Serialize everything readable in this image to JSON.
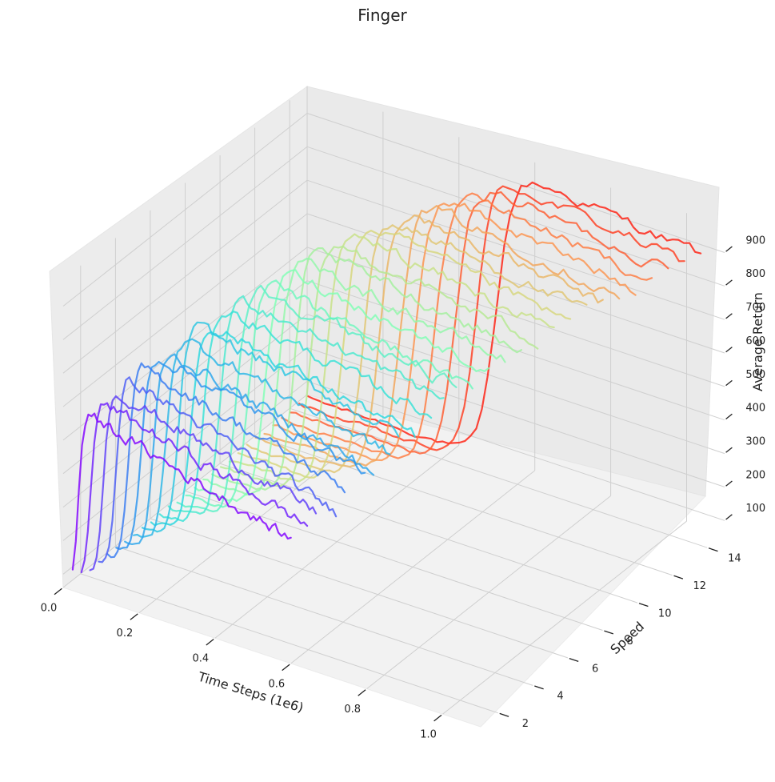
{
  "chart_data": {
    "type": "line",
    "projection": "3d",
    "title": "Finger",
    "xlabel": "Time Steps (1e6)",
    "ylabel": "Speed",
    "zlabel": "Average Return",
    "xlim": [
      0.0,
      1.1
    ],
    "ylim": [
      1.0,
      15.0
    ],
    "zlim": [
      60,
      980
    ],
    "x_ticks": [
      "0.0",
      "0.2",
      "0.4",
      "0.6",
      "0.8",
      "1.0"
    ],
    "y_ticks": [
      "2",
      "4",
      "6",
      "8",
      "10",
      "12",
      "14"
    ],
    "z_ticks": [
      "100",
      "200",
      "300",
      "400",
      "500",
      "600",
      "700",
      "800",
      "900"
    ],
    "grid": true,
    "colormap": "rainbow",
    "color_stops": [
      "#8000ff",
      "#2a8ef0",
      "#2adddd",
      "#80ffb4",
      "#d4dd80",
      "#ff8e4a",
      "#ff0000"
    ],
    "series_by_speed": [
      {
        "speed": 1.0,
        "x_end": 0.6,
        "x_rise": 0.04,
        "rise_width": 0.025,
        "final_return": 600,
        "end_return": 430
      },
      {
        "speed": 1.5,
        "x_end": 0.62,
        "x_rise": 0.05,
        "rise_width": 0.03,
        "final_return": 620,
        "end_return": 460
      },
      {
        "speed": 2.0,
        "x_end": 0.62,
        "x_rise": 0.06,
        "rise_width": 0.03,
        "final_return": 640,
        "end_return": 480
      },
      {
        "speed": 2.5,
        "x_end": 0.65,
        "x_rise": 0.07,
        "rise_width": 0.035,
        "final_return": 660,
        "end_return": 470
      },
      {
        "speed": 3.0,
        "x_end": 0.65,
        "x_rise": 0.08,
        "rise_width": 0.035,
        "final_return": 680,
        "end_return": 520
      },
      {
        "speed": 3.5,
        "x_end": 0.68,
        "x_rise": 0.09,
        "rise_width": 0.04,
        "final_return": 700,
        "end_return": 560
      },
      {
        "speed": 4.0,
        "x_end": 0.68,
        "x_rise": 0.1,
        "rise_width": 0.04,
        "final_return": 690,
        "end_return": 540
      },
      {
        "speed": 4.5,
        "x_end": 0.7,
        "x_rise": 0.11,
        "rise_width": 0.045,
        "final_return": 720,
        "end_return": 580
      },
      {
        "speed": 5.0,
        "x_end": 0.7,
        "x_rise": 0.12,
        "rise_width": 0.045,
        "final_return": 740,
        "end_return": 620
      },
      {
        "speed": 5.5,
        "x_end": 0.72,
        "x_rise": 0.13,
        "rise_width": 0.05,
        "final_return": 730,
        "end_return": 600
      },
      {
        "speed": 6.0,
        "x_end": 0.74,
        "x_rise": 0.14,
        "rise_width": 0.05,
        "final_return": 760,
        "end_return": 650
      },
      {
        "speed": 6.5,
        "x_end": 0.75,
        "x_rise": 0.16,
        "rise_width": 0.05,
        "final_return": 780,
        "end_return": 680
      },
      {
        "speed": 7.0,
        "x_end": 0.76,
        "x_rise": 0.18,
        "rise_width": 0.055,
        "final_return": 800,
        "end_return": 700
      },
      {
        "speed": 7.5,
        "x_end": 0.78,
        "x_rise": 0.19,
        "rise_width": 0.055,
        "final_return": 790,
        "end_return": 680
      },
      {
        "speed": 8.0,
        "x_end": 0.8,
        "x_rise": 0.21,
        "rise_width": 0.06,
        "final_return": 820,
        "end_return": 720
      },
      {
        "speed": 8.5,
        "x_end": 0.82,
        "x_rise": 0.22,
        "rise_width": 0.06,
        "final_return": 830,
        "end_return": 740
      },
      {
        "speed": 9.0,
        "x_end": 0.84,
        "x_rise": 0.24,
        "rise_width": 0.06,
        "final_return": 850,
        "end_return": 760
      },
      {
        "speed": 9.5,
        "x_end": 0.86,
        "x_rise": 0.26,
        "rise_width": 0.065,
        "final_return": 860,
        "end_return": 770
      },
      {
        "speed": 10.0,
        "x_end": 0.88,
        "x_rise": 0.28,
        "rise_width": 0.065,
        "final_return": 880,
        "end_return": 790
      },
      {
        "speed": 10.5,
        "x_end": 0.9,
        "x_rise": 0.3,
        "rise_width": 0.07,
        "final_return": 890,
        "end_return": 800
      },
      {
        "speed": 11.0,
        "x_end": 0.92,
        "x_rise": 0.33,
        "rise_width": 0.07,
        "final_return": 900,
        "end_return": 820
      },
      {
        "speed": 11.5,
        "x_end": 0.94,
        "x_rise": 0.35,
        "rise_width": 0.07,
        "final_return": 910,
        "end_return": 830
      },
      {
        "speed": 12.0,
        "x_end": 0.96,
        "x_rise": 0.38,
        "rise_width": 0.075,
        "final_return": 920,
        "end_return": 840
      },
      {
        "speed": 12.5,
        "x_end": 0.98,
        "x_rise": 0.4,
        "rise_width": 0.075,
        "final_return": 930,
        "end_return": 850
      },
      {
        "speed": 13.0,
        "x_end": 1.0,
        "x_rise": 0.43,
        "rise_width": 0.08,
        "final_return": 940,
        "end_return": 860
      },
      {
        "speed": 13.5,
        "x_end": 1.02,
        "x_rise": 0.46,
        "rise_width": 0.08,
        "final_return": 945,
        "end_return": 880
      },
      {
        "speed": 14.0,
        "x_end": 1.04,
        "x_rise": 0.49,
        "rise_width": 0.08,
        "final_return": 950,
        "end_return": 890
      },
      {
        "speed": 14.5,
        "x_end": 1.06,
        "x_rise": 0.52,
        "rise_width": 0.085,
        "final_return": 955,
        "end_return": 900
      }
    ]
  }
}
